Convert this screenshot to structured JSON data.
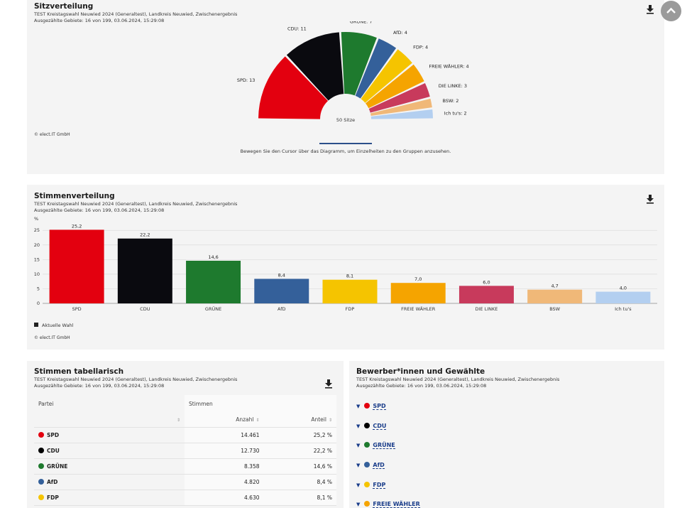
{
  "sitz": {
    "title": "Sitzverteilung",
    "sub1": "TEST Kreistagswahl Neuwied 2024 (Generaltest), Landkreis Neuwied, Zwischenergebnis",
    "sub2": "Ausgezählte Gebiete: 16 von 199, 03.06.2024, 15:29:08",
    "center_label": "50 Sitze",
    "hint": "Bewegen Sie den Cursor über das Diagramm, um Einzelheiten zu den Gruppen anzusehen.",
    "copyright": "© elect.IT GmbH"
  },
  "stimmen": {
    "title": "Stimmenverteilung",
    "sub1": "TEST Kreistagswahl Neuwied 2024 (Generaltest), Landkreis Neuwied, Zwischenergebnis",
    "sub2": "Ausgezählte Gebiete: 16 von 199, 03.06.2024, 15:29:08",
    "y_unit": "%",
    "legend": "Aktuelle Wahl",
    "copyright": "© elect.IT GmbH"
  },
  "tabelle": {
    "title": "Stimmen tabellarisch",
    "sub1": "TEST Kreistagswahl Neuwied 2024 (Generaltest), Landkreis Neuwied, Zwischenergebnis",
    "sub2": "Ausgezählte Gebiete: 16 von 199, 03.06.2024, 15:29:08",
    "col_partei": "Partei",
    "col_stimmen": "Stimmen",
    "col_anzahl": "Anzahl",
    "col_anteil": "Anteil",
    "rows": [
      {
        "party": "SPD",
        "anzahl": "14.461",
        "anteil": "25,2 %",
        "color": "#e3000f"
      },
      {
        "party": "CDU",
        "anzahl": "12.730",
        "anteil": "22,2 %",
        "color": "#000000"
      },
      {
        "party": "GRÜNE",
        "anzahl": "8.358",
        "anteil": "14,6 %",
        "color": "#1e7a2e"
      },
      {
        "party": "AfD",
        "anzahl": "4.820",
        "anteil": "8,4 %",
        "color": "#34609a"
      },
      {
        "party": "FDP",
        "anzahl": "4.630",
        "anteil": "8,1 %",
        "color": "#f5c400"
      }
    ]
  },
  "bewerber": {
    "title": "Bewerber*innen und Gewählte",
    "sub1": "TEST Kreistagswahl Neuwied 2024 (Generaltest), Landkreis Neuwied, Zwischenergebnis",
    "sub2": "Ausgezählte Gebiete: 16 von 199, 03.06.2024, 15:29:08",
    "items": [
      {
        "label": "SPD",
        "color": "#e3000f"
      },
      {
        "label": "CDU",
        "color": "#000000"
      },
      {
        "label": "GRÜNE",
        "color": "#1e7a2e"
      },
      {
        "label": "AfD",
        "color": "#34609a"
      },
      {
        "label": "FDP",
        "color": "#f5c400"
      },
      {
        "label": "FREIE WÄHLER",
        "color": "#f5a400"
      }
    ]
  },
  "icons": {
    "download": "download-icon",
    "scroll_top": "chevron-up-icon",
    "expand": "triangle-down-icon",
    "sort": "sort-icon"
  },
  "chart_data": [
    {
      "type": "pie",
      "title": "Sitzverteilung",
      "categories": [
        "SPD",
        "CDU",
        "GRÜNE",
        "AfD",
        "FDP",
        "FREIE WÄHLER",
        "DIE LINKE",
        "BSW",
        "Ich tu's"
      ],
      "values": [
        13,
        11,
        7,
        4,
        4,
        4,
        3,
        2,
        2
      ],
      "labels": [
        "SPD: 13",
        "CDU: 11",
        "GRÜNE: 7",
        "AfD: 4",
        "FDP: 4",
        "FREIE WÄHLER: 4",
        "DIE LINKE: 3",
        "BSW: 2",
        "Ich tu's: 2"
      ],
      "colors": [
        "#e3000f",
        "#0a0a0f",
        "#1e7a2e",
        "#34609a",
        "#f5c400",
        "#f5a400",
        "#c83a5c",
        "#f0b878",
        "#b3cff0"
      ]
    },
    {
      "type": "bar",
      "title": "Stimmenverteilung",
      "categories": [
        "SPD",
        "CDU",
        "GRÜNE",
        "AfD",
        "FDP",
        "FREIE WÄHLER",
        "DIE LINKE",
        "BSW",
        "Ich tu's"
      ],
      "series": [
        {
          "name": "Aktuelle Wahl",
          "values": [
            25.2,
            22.2,
            14.6,
            8.4,
            8.1,
            7.0,
            6.0,
            4.7,
            4.0
          ]
        }
      ],
      "value_labels": [
        "25,2",
        "22,2",
        "14,6",
        "8,4",
        "8,1",
        "7,0",
        "6,0",
        "4,7",
        "4,0"
      ],
      "colors": [
        "#e3000f",
        "#0a0a0f",
        "#1e7a2e",
        "#34609a",
        "#f5c400",
        "#f5a400",
        "#c83a5c",
        "#f0b878",
        "#b3cff0"
      ],
      "ylabel": "%",
      "yticks": [
        "0",
        "5",
        "10",
        "15",
        "20",
        "25"
      ],
      "ylim": [
        0,
        27
      ],
      "grid": true,
      "legend": "bottom-left"
    }
  ]
}
